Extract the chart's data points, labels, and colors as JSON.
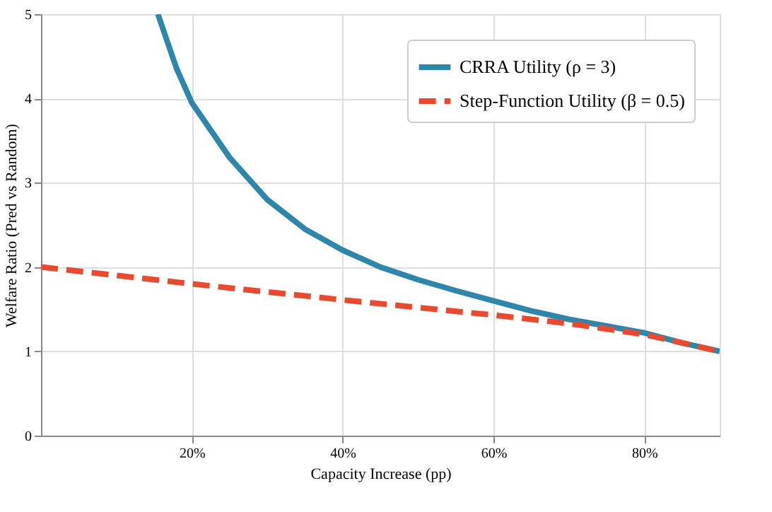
{
  "chart_data": {
    "type": "line",
    "xlabel": "Capacity Increase (pp)",
    "ylabel": "Welfare Ratio (Pred vs Random)",
    "xlim": [
      0,
      90
    ],
    "ylim": [
      0,
      5
    ],
    "xticks": [
      {
        "value": 20,
        "label": "20%"
      },
      {
        "value": 40,
        "label": "40%"
      },
      {
        "value": 60,
        "label": "60%"
      },
      {
        "value": 80,
        "label": "80%"
      }
    ],
    "yticks": [
      0,
      1,
      2,
      3,
      4,
      5
    ],
    "grid": true,
    "legend": "top right",
    "series": [
      {
        "name": "CRRA Utility (ρ = 3)",
        "color": "#2e86ab",
        "line_style": "solid",
        "x": [
          15.5,
          18,
          20,
          25,
          30,
          35,
          40,
          45,
          50,
          55,
          60,
          65,
          70,
          75,
          80,
          85,
          90
        ],
        "values": [
          5,
          4.35,
          3.95,
          3.3,
          2.8,
          2.45,
          2.2,
          2.0,
          1.85,
          1.72,
          1.6,
          1.48,
          1.38,
          1.3,
          1.22,
          1.1,
          1.0
        ]
      },
      {
        "name": "Step-Function Utility (β = 0.5)",
        "color": "#e84a2f",
        "line_style": "dashed",
        "x": [
          0,
          20,
          40,
          60,
          70,
          80,
          90
        ],
        "values": [
          2.0,
          1.8,
          1.61,
          1.43,
          1.33,
          1.2,
          1.0
        ]
      }
    ]
  }
}
